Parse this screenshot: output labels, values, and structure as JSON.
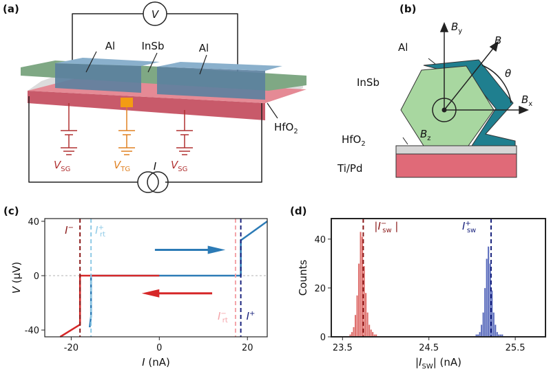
{
  "panel_a": {
    "label": "(a)",
    "voltmeter": "V",
    "al_left": "Al",
    "insb": "InSb",
    "al_right": "Al",
    "gate_left": {
      "t": "V",
      "sub": "SG"
    },
    "gate_top": {
      "t": "V",
      "sub": "TG"
    },
    "gate_right": {
      "t": "V",
      "sub": "SG"
    },
    "dielectric": {
      "t": "HfO",
      "sub": "2"
    },
    "current_source": "I"
  },
  "panel_b": {
    "label": "(b)",
    "by": {
      "t": "B",
      "sub": "y"
    },
    "b": "B",
    "theta": "θ",
    "al": "Al",
    "insb": "InSb",
    "bx": {
      "t": "B",
      "sub": "x"
    },
    "dielectric": {
      "t": "HfO",
      "sub": "2"
    },
    "bz": {
      "t": "B",
      "sub": "z"
    },
    "gate": "Ti/Pd"
  },
  "chart_data": [
    {
      "type": "line",
      "panel_label": "(c)",
      "xlabel": {
        "t": "I",
        "rest": " (nA)"
      },
      "ylabel": {
        "t": "V",
        "rest": " (µV)"
      },
      "xlim": [
        -26,
        24.5
      ],
      "xticks": [
        -20,
        0,
        20
      ],
      "ylim": [
        -45,
        42
      ],
      "yticks": [
        -40,
        0,
        40
      ],
      "series": [
        {
          "color": "#2c7bb6",
          "x": [
            -15.8,
            -15.5,
            -15.5,
            18.5,
            18.5,
            24.5
          ],
          "values": [
            -38,
            -30,
            0,
            0,
            26,
            40
          ]
        },
        {
          "color": "#d62728",
          "x": [
            0,
            -18,
            -18,
            -22.5
          ],
          "values": [
            0,
            0,
            -36,
            -45
          ]
        }
      ],
      "markers": [
        {
          "x": -18,
          "color": "#8b1a1a",
          "label": {
            "t": "I",
            "sup": "−"
          }
        },
        {
          "x": -15.5,
          "color": "#8ecae6",
          "label": {
            "t": "I",
            "sup": "+",
            "sub": "rt"
          }
        },
        {
          "x": 17.3,
          "color": "#f4a3a8",
          "label": {
            "t": "I",
            "sup": "−",
            "sub": "rt"
          }
        },
        {
          "x": 18.5,
          "color": "#1a237e",
          "label": {
            "t": "I",
            "sup": "+"
          }
        }
      ]
    },
    {
      "type": "histogram",
      "panel_label": "(d)",
      "xlabel": {
        "t": "|I",
        "sub": "SW",
        "rest": "| (nA)"
      },
      "ylabel": "Counts",
      "xlim": [
        23.37,
        25.85
      ],
      "xticks": [
        23.5,
        24.5,
        25.5
      ],
      "ylim": [
        0,
        48.4
      ],
      "yticks": [
        0,
        20,
        40
      ],
      "series": [
        {
          "color": "#d9534f",
          "bins": [
            23.58,
            23.6,
            23.62,
            23.64,
            23.66,
            23.68,
            23.7,
            23.72,
            23.74,
            23.76,
            23.78,
            23.8,
            23.82,
            23.84,
            23.86,
            23.88,
            23.9
          ],
          "values": [
            1,
            2,
            4,
            9,
            17,
            30,
            43,
            41,
            29,
            18,
            10,
            5,
            3,
            2,
            1,
            1
          ]
        },
        {
          "color": "#3a4fb0",
          "bins": [
            25.04,
            25.06,
            25.08,
            25.1,
            25.12,
            25.14,
            25.16,
            25.18,
            25.2,
            25.22,
            25.24,
            25.26,
            25.28,
            25.3,
            25.32,
            25.34,
            25.36
          ],
          "values": [
            1,
            1,
            2,
            5,
            10,
            20,
            32,
            37,
            30,
            19,
            10,
            5,
            2,
            1,
            1,
            1
          ]
        }
      ],
      "markers": [
        {
          "x": 23.74,
          "color": "#8b1a1a",
          "label": {
            "t": "|I",
            "sup": "−",
            "sub": "sw",
            "rest": " |"
          }
        },
        {
          "x": 25.22,
          "color": "#1a237e",
          "label": {
            "t": "I",
            "sup": "+",
            "sub": "sw"
          }
        }
      ]
    }
  ]
}
